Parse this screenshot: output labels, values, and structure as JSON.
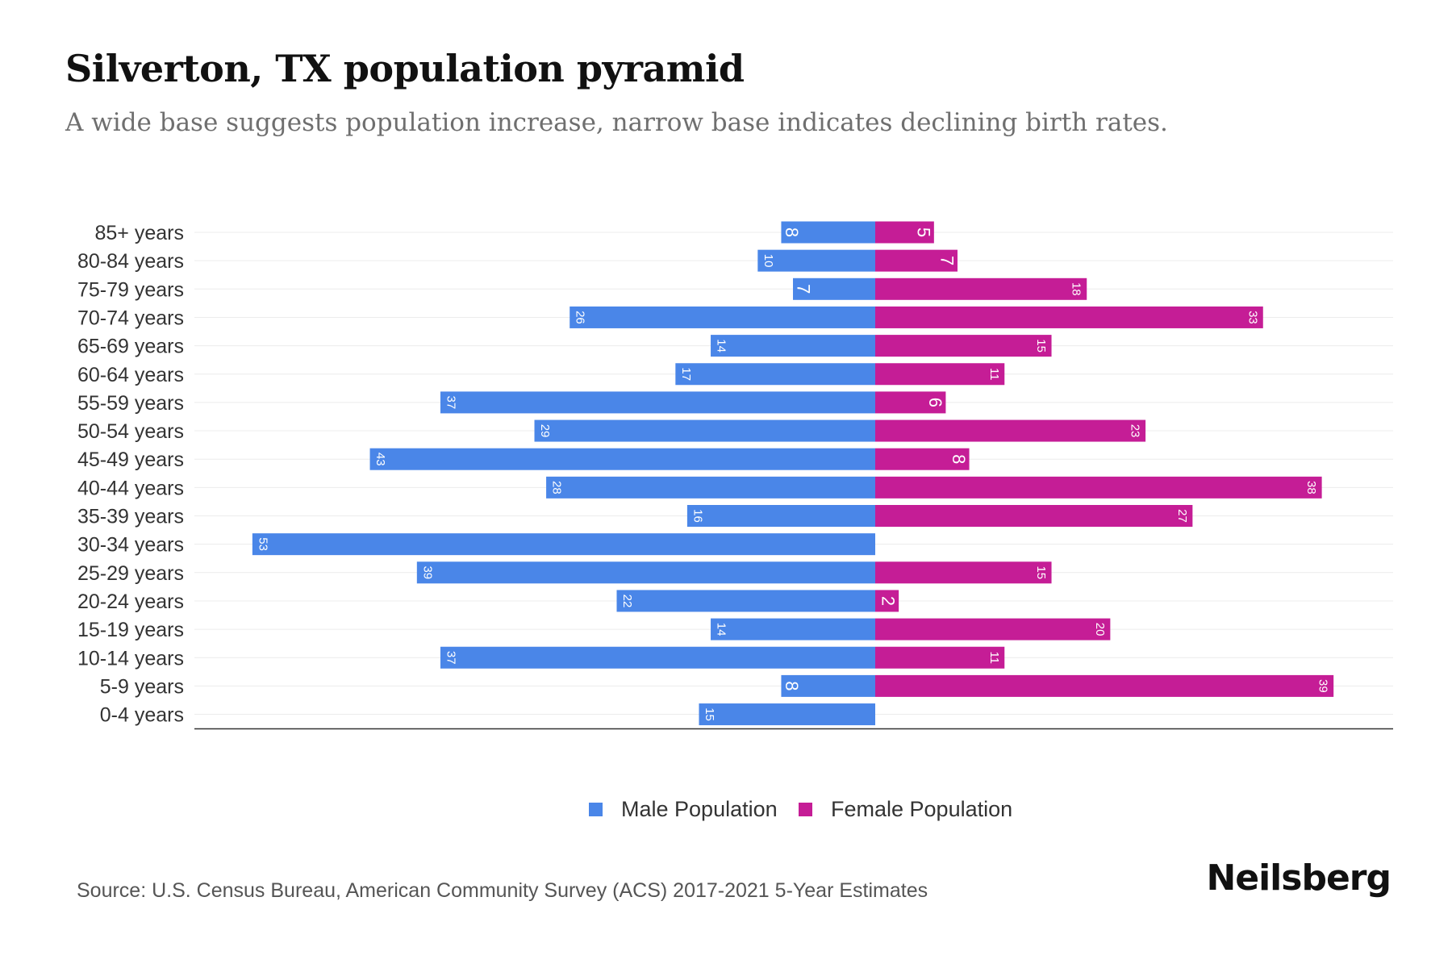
{
  "chart_data": {
    "type": "bar",
    "orientation": "horizontal-diverging",
    "title": "Silverton, TX population pyramid",
    "subtitle": "A wide base suggests population increase, narrow base indicates declining birth rates.",
    "categories": [
      "85+ years",
      "80-84 years",
      "75-79 years",
      "70-74 years",
      "65-69 years",
      "60-64 years",
      "55-59 years",
      "50-54 years",
      "45-49 years",
      "40-44 years",
      "35-39 years",
      "30-34 years",
      "25-29 years",
      "20-24 years",
      "15-19 years",
      "10-14 years",
      "5-9 years",
      "0-4 years"
    ],
    "series": [
      {
        "name": "Male Population",
        "color": "#4a86e8",
        "values": [
          8,
          10,
          7,
          26,
          14,
          17,
          37,
          29,
          43,
          28,
          16,
          53,
          39,
          22,
          14,
          37,
          8,
          15
        ]
      },
      {
        "name": "Female Population",
        "color": "#c51d96",
        "values": [
          5,
          7,
          18,
          33,
          15,
          11,
          6,
          23,
          8,
          38,
          27,
          0,
          15,
          2,
          20,
          11,
          39,
          0
        ]
      }
    ],
    "xlim": [
      -58,
      44
    ],
    "legend": "bottom-center",
    "grid": true
  },
  "source": "Source: U.S. Census Bureau, American Community Survey (ACS) 2017-2021 5-Year Estimates",
  "brand": "Neilsberg"
}
